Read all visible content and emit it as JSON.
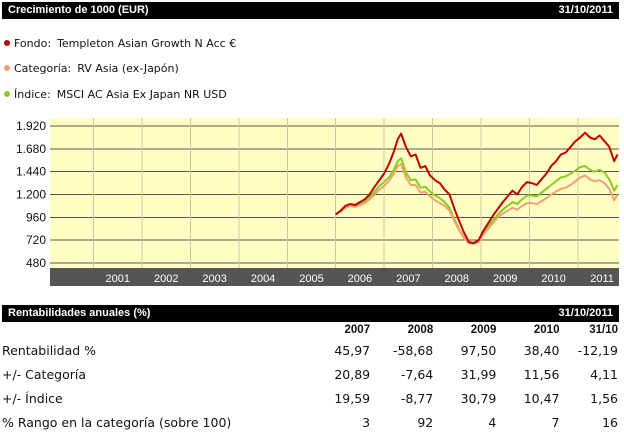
{
  "header": {
    "title": "Crecimiento de 1000 (EUR)",
    "date": "31/10/2011"
  },
  "legend": [
    {
      "key": "Fondo:",
      "name": "Templeton Asian Growth N Acc €",
      "color": "#c00000"
    },
    {
      "key": "Categoría:",
      "name": "RV Asia (ex-Japón)",
      "color": "#f4a070"
    },
    {
      "key": "Índice:",
      "name": "MSCI AC Asia Ex Japan NR USD",
      "color": "#88cc22"
    }
  ],
  "chart_data": {
    "type": "line",
    "x_ticks": [
      "2001",
      "2002",
      "2003",
      "2004",
      "2005",
      "2006",
      "2007",
      "2008",
      "2009",
      "2010",
      "2011"
    ],
    "y_ticks": [
      "1.920",
      "1.680",
      "1.440",
      "1.200",
      "960",
      "720",
      "480"
    ],
    "ylim": [
      480,
      1920
    ],
    "grid": true,
    "x_range": [
      2000.1,
      2011.85
    ],
    "series": [
      {
        "name": "Fondo",
        "color": "#c00000",
        "x": [
          2006.0,
          2006.1,
          2006.2,
          2006.3,
          2006.4,
          2006.5,
          2006.6,
          2006.7,
          2006.8,
          2006.9,
          2007.0,
          2007.1,
          2007.2,
          2007.28,
          2007.35,
          2007.45,
          2007.55,
          2007.65,
          2007.75,
          2007.85,
          2007.95,
          2008.05,
          2008.15,
          2008.25,
          2008.35,
          2008.45,
          2008.55,
          2008.65,
          2008.75,
          2008.85,
          2008.95,
          2009.05,
          2009.15,
          2009.25,
          2009.35,
          2009.45,
          2009.55,
          2009.65,
          2009.75,
          2009.85,
          2009.95,
          2010.05,
          2010.15,
          2010.25,
          2010.35,
          2010.45,
          2010.55,
          2010.65,
          2010.75,
          2010.85,
          2010.95,
          2011.05,
          2011.15,
          2011.25,
          2011.35,
          2011.45,
          2011.55,
          2011.65,
          2011.75,
          2011.82
        ],
        "y": [
          990,
          1030,
          1080,
          1100,
          1090,
          1120,
          1150,
          1200,
          1280,
          1350,
          1420,
          1520,
          1650,
          1780,
          1840,
          1700,
          1600,
          1620,
          1480,
          1500,
          1400,
          1350,
          1320,
          1250,
          1200,
          1050,
          920,
          800,
          700,
          690,
          720,
          820,
          900,
          980,
          1050,
          1120,
          1180,
          1240,
          1200,
          1280,
          1330,
          1320,
          1300,
          1360,
          1420,
          1500,
          1550,
          1620,
          1640,
          1700,
          1760,
          1800,
          1850,
          1800,
          1780,
          1820,
          1760,
          1700,
          1550,
          1620
        ]
      },
      {
        "name": "Categoría",
        "color": "#f4a070",
        "x": [
          2006.0,
          2006.1,
          2006.2,
          2006.3,
          2006.4,
          2006.5,
          2006.6,
          2006.7,
          2006.8,
          2006.9,
          2007.0,
          2007.1,
          2007.2,
          2007.28,
          2007.35,
          2007.45,
          2007.55,
          2007.65,
          2007.75,
          2007.85,
          2007.95,
          2008.05,
          2008.15,
          2008.25,
          2008.35,
          2008.45,
          2008.55,
          2008.65,
          2008.75,
          2008.85,
          2008.95,
          2009.05,
          2009.15,
          2009.25,
          2009.35,
          2009.45,
          2009.55,
          2009.65,
          2009.75,
          2009.85,
          2009.95,
          2010.05,
          2010.15,
          2010.25,
          2010.35,
          2010.45,
          2010.55,
          2010.65,
          2010.75,
          2010.85,
          2010.95,
          2011.05,
          2011.15,
          2011.25,
          2011.35,
          2011.45,
          2011.55,
          2011.65,
          2011.75,
          2011.82
        ],
        "y": [
          990,
          1020,
          1060,
          1080,
          1070,
          1090,
          1110,
          1150,
          1200,
          1250,
          1290,
          1340,
          1420,
          1500,
          1520,
          1380,
          1300,
          1300,
          1220,
          1230,
          1180,
          1140,
          1110,
          1080,
          1030,
          920,
          820,
          740,
          690,
          680,
          700,
          780,
          840,
          900,
          960,
          1000,
          1030,
          1060,
          1040,
          1080,
          1110,
          1110,
          1100,
          1130,
          1160,
          1200,
          1230,
          1260,
          1270,
          1300,
          1340,
          1380,
          1400,
          1360,
          1340,
          1350,
          1320,
          1260,
          1140,
          1200
        ]
      },
      {
        "name": "Índice",
        "color": "#88cc22",
        "x": [
          2006.0,
          2006.1,
          2006.2,
          2006.3,
          2006.4,
          2006.5,
          2006.6,
          2006.7,
          2006.8,
          2006.9,
          2007.0,
          2007.1,
          2007.2,
          2007.28,
          2007.35,
          2007.45,
          2007.55,
          2007.65,
          2007.75,
          2007.85,
          2007.95,
          2008.05,
          2008.15,
          2008.25,
          2008.35,
          2008.45,
          2008.55,
          2008.65,
          2008.75,
          2008.85,
          2008.95,
          2009.05,
          2009.15,
          2009.25,
          2009.35,
          2009.45,
          2009.55,
          2009.65,
          2009.75,
          2009.85,
          2009.95,
          2010.05,
          2010.15,
          2010.25,
          2010.35,
          2010.45,
          2010.55,
          2010.65,
          2010.75,
          2010.85,
          2010.95,
          2011.05,
          2011.15,
          2011.25,
          2011.35,
          2011.45,
          2011.55,
          2011.65,
          2011.75,
          2011.82
        ],
        "y": [
          995,
          1030,
          1070,
          1090,
          1080,
          1100,
          1130,
          1170,
          1230,
          1290,
          1330,
          1380,
          1460,
          1550,
          1580,
          1430,
          1350,
          1360,
          1270,
          1280,
          1230,
          1190,
          1160,
          1120,
          1060,
          940,
          830,
          750,
          700,
          690,
          710,
          800,
          870,
          930,
          990,
          1040,
          1080,
          1120,
          1100,
          1150,
          1190,
          1190,
          1180,
          1220,
          1260,
          1300,
          1340,
          1380,
          1390,
          1420,
          1450,
          1490,
          1500,
          1460,
          1440,
          1460,
          1430,
          1360,
          1240,
          1300
        ]
      }
    ]
  },
  "annual": {
    "title": "Rentabilidades anuales (%)",
    "date": "31/10/2011",
    "columns": [
      "2007",
      "2008",
      "2009",
      "2010",
      "31/10"
    ],
    "rows": [
      {
        "label": "Rentabilidad %",
        "values": [
          "45,97",
          "-58,68",
          "97,50",
          "38,40",
          "-12,19"
        ]
      },
      {
        "label": "+/-  Categoría",
        "values": [
          "20,89",
          "-7,64",
          "31,99",
          "11,56",
          "4,11"
        ]
      },
      {
        "label": "+/-  Índice",
        "values": [
          "19,59",
          "-8,77",
          "30,79",
          "10,47",
          "1,56"
        ]
      },
      {
        "label": "% Rango en la categoría (sobre 100)",
        "values": [
          "3",
          "92",
          "4",
          "7",
          "16"
        ]
      }
    ]
  }
}
